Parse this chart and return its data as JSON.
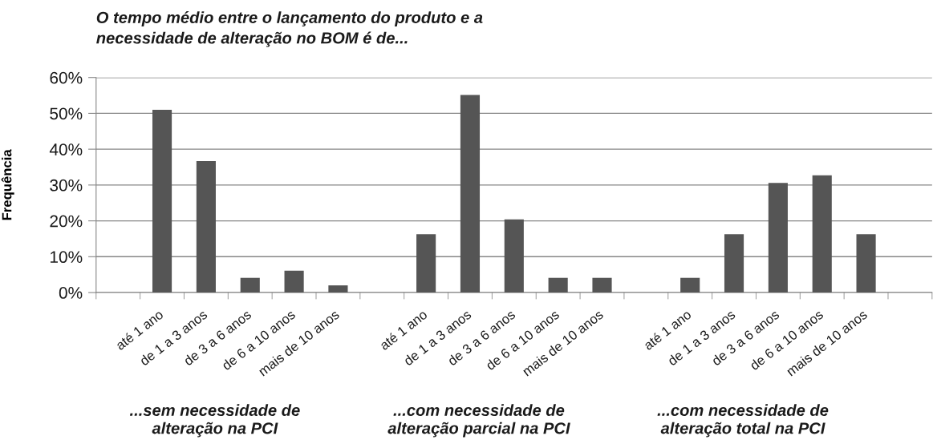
{
  "chart_data": {
    "type": "bar",
    "title": "O tempo médio entre o lançamento do produto e a\nnecessidade de alteração no BOM é de...",
    "ylabel": "Frequência",
    "categories": [
      null,
      "até 1 ano",
      "de 1 a 3 anos",
      "de 3 a 6 anos",
      "de 6 a 10 anos",
      "mais de 10 anos",
      null,
      "até 1 ano",
      "de 1 a 3 anos",
      "de 3 a 6 anos",
      "de 6 a 10 anos",
      "mais de 10 anos",
      null,
      "até 1 ano",
      "de 1 a 3 anos",
      "de 3 a 6 anos",
      "de 6 a 10 anos",
      "mais de 10 anos",
      null
    ],
    "values": [
      null,
      51.0,
      36.7,
      4.1,
      6.1,
      2.0,
      null,
      16.3,
      55.1,
      20.4,
      4.1,
      4.1,
      null,
      4.1,
      16.3,
      30.6,
      32.7,
      16.3,
      null
    ],
    "color": "#555555",
    "ylim": [
      0,
      60
    ],
    "yticks": [
      {
        "value": 0,
        "label": "0%"
      },
      {
        "value": 10,
        "label": "10%"
      },
      {
        "value": 20,
        "label": "20%"
      },
      {
        "value": 30,
        "label": "30%"
      },
      {
        "value": 40,
        "label": "40%"
      },
      {
        "value": 50,
        "label": "50%"
      },
      {
        "value": 60,
        "label": "60%"
      }
    ],
    "grid": "y",
    "annotations": [
      "...sem necessidade de\nalteração na PCI",
      "...com necessidade de\nalteração parcial na PCI",
      "...com necessidade de\nalteração total na PCI"
    ]
  }
}
